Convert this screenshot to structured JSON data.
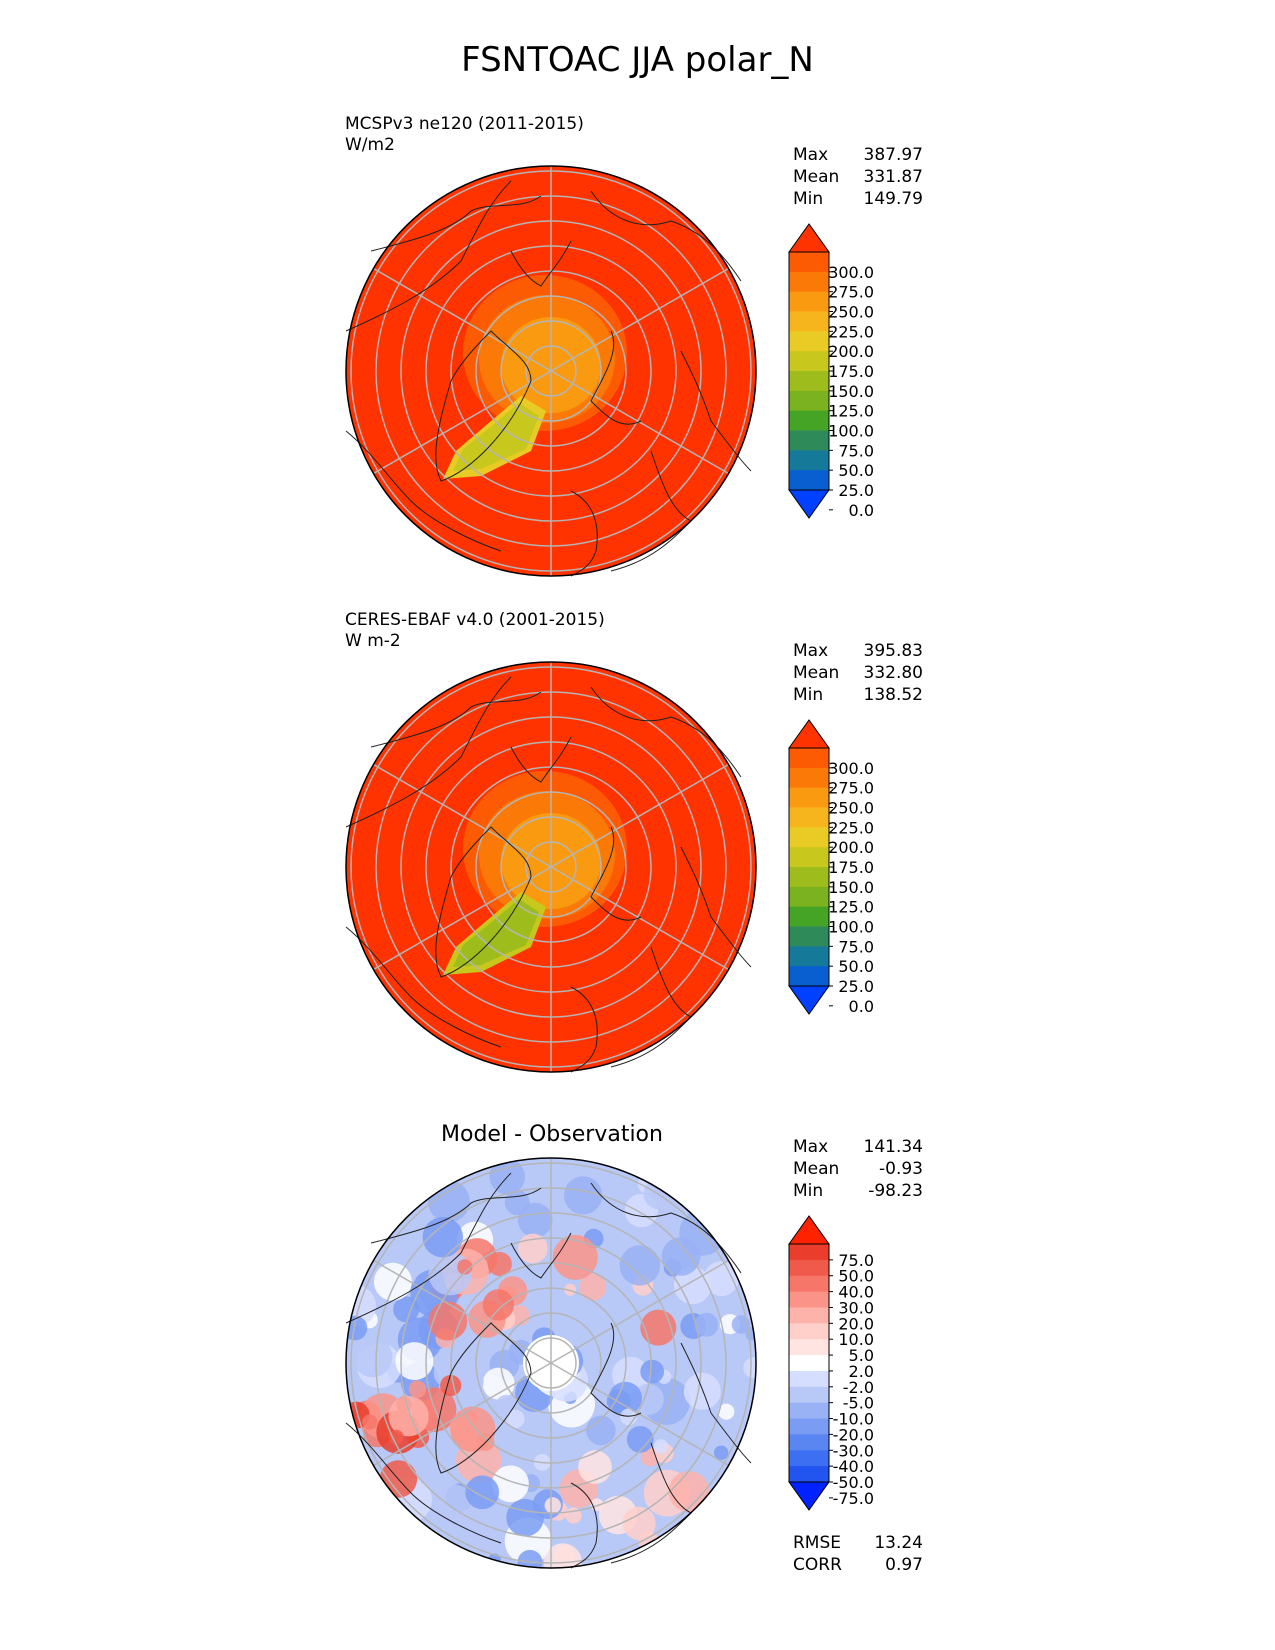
{
  "figure": {
    "title": "FSNTOAC JJA polar_N"
  },
  "colors": {
    "test_cmap": [
      "#0040ff",
      "#0a5fd0",
      "#157a9a",
      "#2f8a5a",
      "#45a325",
      "#7ab220",
      "#9ebd1d",
      "#c8c71e",
      "#e8cc25",
      "#f7b51d",
      "#fa9a10",
      "#fb7a07",
      "#fc5a03",
      "#ff3300"
    ],
    "diff_cmap": [
      "#0022ff",
      "#2255f0",
      "#3d6ff2",
      "#5a86f2",
      "#7a9cf3",
      "#99b2f5",
      "#b8c8f7",
      "#d6deff",
      "#ffffff",
      "#ffe4e2",
      "#ffcfca",
      "#fdb2aa",
      "#fa9488",
      "#f6776a",
      "#f05a4a",
      "#ea3d2c",
      "#ff2200"
    ],
    "land_outline": "#222222",
    "grid": "#b5b5b5"
  },
  "panels": [
    {
      "id": "test",
      "name": "MCSPv3 ne120 (2011-2015)",
      "units": "W/m2",
      "stats": [
        {
          "label": "Max",
          "value": "387.97"
        },
        {
          "label": "Mean",
          "value": "331.87"
        },
        {
          "label": "Min",
          "value": "149.79"
        }
      ]
    },
    {
      "id": "ref",
      "name": "CERES-EBAF v4.0 (2001-2015)",
      "units": "W m-2",
      "stats": [
        {
          "label": "Max",
          "value": "395.83"
        },
        {
          "label": "Mean",
          "value": "332.80"
        },
        {
          "label": "Min",
          "value": "138.52"
        }
      ]
    },
    {
      "id": "diff",
      "title": "Model - Observation",
      "stats": [
        {
          "label": "Max",
          "value": "141.34"
        },
        {
          "label": "Mean",
          "value": "-0.93"
        },
        {
          "label": "Min",
          "value": "-98.23"
        }
      ],
      "metrics": [
        {
          "label": "RMSE",
          "value": "13.24"
        },
        {
          "label": "CORR",
          "value": "0.97"
        }
      ]
    }
  ],
  "chart_data": [
    {
      "type": "heatmap",
      "projection": "north-polar-stereographic",
      "title": "MCSPv3 ne120 (2011-2015)",
      "units": "W/m2",
      "colorbar": {
        "levels": [
          0,
          25,
          50,
          75,
          100,
          125,
          150,
          175,
          200,
          225,
          250,
          275,
          300
        ],
        "labels": [
          "300.0",
          "275.0",
          "250.0",
          "225.0",
          "200.0",
          "175.0",
          "150.0",
          "125.0",
          "100.0",
          "75.0",
          "50.0",
          "25.0",
          "0.0"
        ],
        "extend": "both"
      },
      "field": {
        "background": 310,
        "pole_region": 230,
        "greenland": 160
      }
    },
    {
      "type": "heatmap",
      "projection": "north-polar-stereographic",
      "title": "CERES-EBAF v4.0 (2001-2015)",
      "units": "W m-2",
      "colorbar": {
        "levels": [
          0,
          25,
          50,
          75,
          100,
          125,
          150,
          175,
          200,
          225,
          250,
          275,
          300
        ],
        "labels": [
          "300.0",
          "275.0",
          "250.0",
          "225.0",
          "200.0",
          "175.0",
          "150.0",
          "125.0",
          "100.0",
          "75.0",
          "50.0",
          "25.0",
          "0.0"
        ],
        "extend": "both"
      },
      "field": {
        "background": 310,
        "pole_region": 230,
        "greenland": 145
      }
    },
    {
      "type": "heatmap",
      "projection": "north-polar-stereographic",
      "title": "Model - Observation",
      "colorbar": {
        "levels": [
          -75,
          -50,
          -40,
          -30,
          -20,
          -10,
          -5,
          -2,
          2,
          5,
          10,
          20,
          30,
          40,
          50,
          75
        ],
        "labels": [
          "75.0",
          "50.0",
          "40.0",
          "30.0",
          "20.0",
          "10.0",
          "5.0",
          "2.0",
          "-2.0",
          "-5.0",
          "-10.0",
          "-20.0",
          "-30.0",
          "-40.0",
          "-50.0",
          "-75.0"
        ],
        "extend": "both"
      }
    }
  ]
}
